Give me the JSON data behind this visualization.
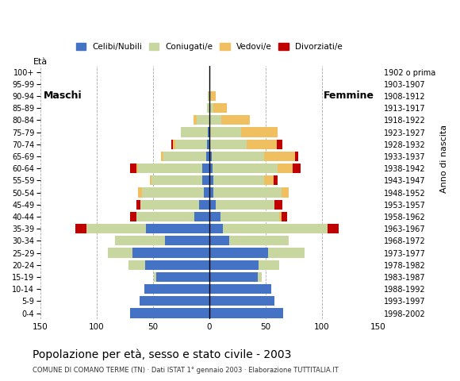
{
  "age_groups": [
    "0-4",
    "5-9",
    "10-14",
    "15-19",
    "20-24",
    "25-29",
    "30-34",
    "35-39",
    "40-44",
    "45-49",
    "50-54",
    "55-59",
    "60-64",
    "65-69",
    "70-74",
    "75-79",
    "80-84",
    "85-89",
    "90-94",
    "95-99",
    "100+"
  ],
  "birth_years": [
    "1998-2002",
    "1993-1997",
    "1988-1992",
    "1983-1987",
    "1978-1982",
    "1973-1977",
    "1968-1972",
    "1963-1967",
    "1958-1962",
    "1953-1957",
    "1948-1952",
    "1943-1947",
    "1938-1942",
    "1933-1937",
    "1928-1932",
    "1923-1927",
    "1918-1922",
    "1913-1917",
    "1908-1912",
    "1903-1907",
    "1902 o prima"
  ],
  "males": {
    "celibi": [
      70,
      62,
      58,
      47,
      57,
      68,
      39,
      56,
      13,
      9,
      5,
      6,
      6,
      3,
      2,
      1,
      0,
      0,
      0,
      0,
      0
    ],
    "coniugati": [
      0,
      0,
      0,
      2,
      15,
      22,
      45,
      53,
      52,
      52,
      55,
      45,
      57,
      38,
      28,
      24,
      11,
      2,
      1,
      0,
      0
    ],
    "vedovi": [
      0,
      0,
      0,
      0,
      0,
      0,
      0,
      0,
      0,
      0,
      3,
      2,
      2,
      2,
      2,
      0,
      3,
      0,
      0,
      0,
      0
    ],
    "divorziati": [
      0,
      0,
      0,
      0,
      0,
      0,
      0,
      10,
      5,
      4,
      0,
      0,
      5,
      0,
      2,
      0,
      0,
      0,
      0,
      0,
      0
    ]
  },
  "females": {
    "nubili": [
      66,
      58,
      55,
      43,
      44,
      52,
      18,
      12,
      10,
      6,
      4,
      4,
      3,
      2,
      1,
      0,
      0,
      0,
      0,
      0,
      0
    ],
    "coniugate": [
      0,
      0,
      0,
      4,
      18,
      33,
      53,
      93,
      52,
      52,
      60,
      45,
      58,
      47,
      32,
      28,
      11,
      4,
      1,
      0,
      0
    ],
    "vedove": [
      0,
      0,
      0,
      0,
      0,
      0,
      0,
      0,
      2,
      0,
      7,
      8,
      13,
      27,
      27,
      33,
      25,
      12,
      5,
      1,
      0
    ],
    "divorziate": [
      0,
      0,
      0,
      0,
      0,
      0,
      0,
      10,
      5,
      7,
      0,
      4,
      7,
      3,
      5,
      0,
      0,
      0,
      0,
      0,
      0
    ]
  },
  "colors": {
    "celibi_nubili": "#4472c4",
    "coniugati": "#c8d6a0",
    "vedovi": "#f0c060",
    "divorziati": "#c00000"
  },
  "xlim": 150,
  "title": "Popolazione per à sesso e stato civile - 2003",
  "title_display": "Popolazione per età, sesso e stato civile - 2003",
  "subtitle": "COMUNE DI COMANO TERME (TN) · Dati ISTAT 1° gennaio 2003 · Elaborazione TUTTITALIA.IT",
  "ylabel": "Età",
  "ylabel_right": "Anno di nascita",
  "label_maschi": "Maschi",
  "label_femmine": "Femmine",
  "legend_labels": [
    "Celibi/Nubili",
    "Coniugati/e",
    "Vedovi/e",
    "Divorziati/e"
  ],
  "background": "#ffffff",
  "bar_height": 0.8
}
